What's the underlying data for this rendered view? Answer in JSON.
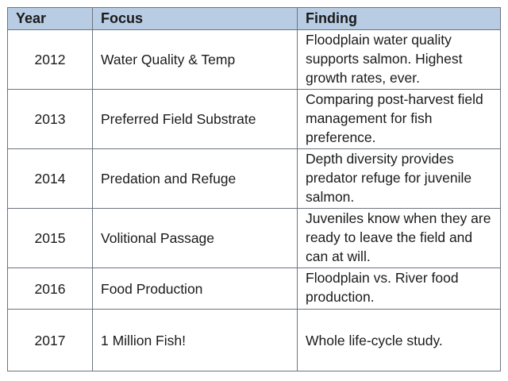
{
  "table": {
    "headers": {
      "year": "Year",
      "focus": "Focus",
      "finding": "Finding"
    },
    "rows": [
      {
        "year": "2012",
        "focus": "Water Quality & Temp",
        "finding": "Floodplain water quality supports salmon. Highest growth rates, ever."
      },
      {
        "year": "2013",
        "focus": "Preferred Field Substrate",
        "finding": "Comparing post-harvest field management for fish preference."
      },
      {
        "year": "2014",
        "focus": "Predation and Refuge",
        "finding": "Depth diversity provides predator refuge for juvenile salmon."
      },
      {
        "year": "2015",
        "focus": "Volitional Passage",
        "finding": "Juveniles know when they are ready to leave the field and can at will."
      },
      {
        "year": "2016",
        "focus": "Food Production",
        "finding": "Floodplain vs. River food production."
      },
      {
        "year": "2017",
        "focus": "1 Million Fish!",
        "finding": "Whole life-cycle study."
      }
    ]
  },
  "colors": {
    "header_background": "#b8cce4",
    "border": "#6b7380"
  }
}
